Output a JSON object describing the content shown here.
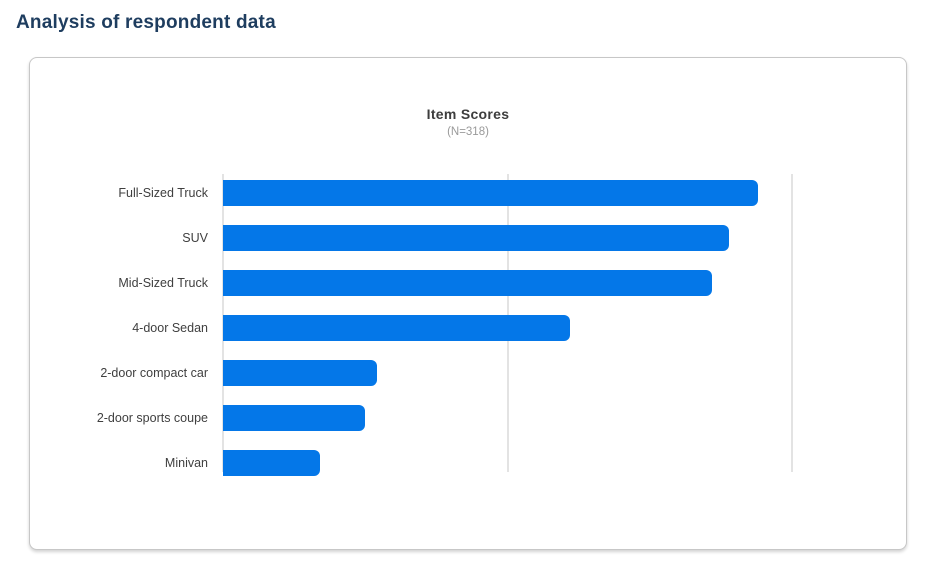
{
  "page": {
    "title": "Analysis of respondent data"
  },
  "chart": {
    "title": "Item Scores",
    "subtitle": "(N=318)"
  },
  "chart_data": {
    "type": "bar",
    "orientation": "horizontal",
    "title": "Item Scores",
    "subtitle": "(N=318)",
    "categories": [
      "Full-Sized Truck",
      "SUV",
      "Mid-Sized Truck",
      "4-door Sedan",
      "2-door compact car",
      "2-door sports coupe",
      "Minivan"
    ],
    "values": [
      94,
      89,
      86,
      61,
      27,
      25,
      17
    ],
    "xlim": [
      0,
      100
    ],
    "gridlines_x": [
      0,
      50,
      100
    ],
    "axis_tick_labels_visible": false,
    "legend": "none"
  },
  "colors": {
    "bar": "#0477e8",
    "page_title": "#1e3d5f",
    "gridline": "#e3e3e3",
    "card_border": "#c7c7c7"
  }
}
